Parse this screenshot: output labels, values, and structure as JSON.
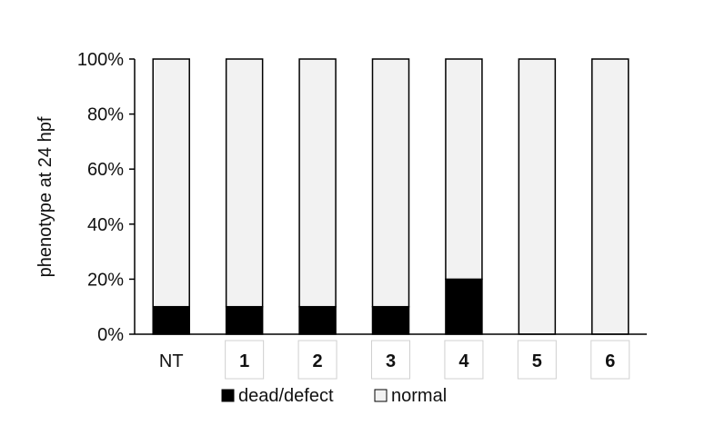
{
  "chart_data": {
    "type": "bar",
    "stacked": true,
    "percent_scale": true,
    "categories": [
      "NT",
      "1",
      "2",
      "3",
      "4",
      "5",
      "6"
    ],
    "boxed_categories": [
      "1",
      "2",
      "3",
      "4",
      "5",
      "6"
    ],
    "series": [
      {
        "name": "dead/defect",
        "values": [
          10,
          10,
          10,
          10,
          20,
          0,
          0
        ],
        "color": "#000000"
      },
      {
        "name": "normal",
        "values": [
          90,
          90,
          90,
          90,
          80,
          100,
          100
        ],
        "color": "#f2f2f2"
      }
    ],
    "ylabel": "phenotype at 24 hpf",
    "xlabel": "",
    "ylim": [
      0,
      100
    ],
    "yticks": [
      0,
      20,
      40,
      60,
      80,
      100
    ],
    "ytick_labels": [
      "0%",
      "20%",
      "40%",
      "60%",
      "80%",
      "100%"
    ],
    "grid": false,
    "legend_position": "bottom"
  },
  "colors": {
    "outline": "#000000",
    "box_border": "#d0d0d0"
  }
}
